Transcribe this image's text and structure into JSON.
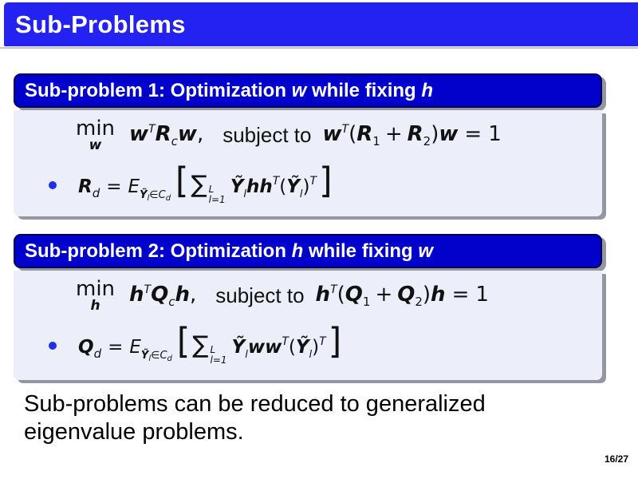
{
  "slide": {
    "header": {
      "title": "Sub-Problems"
    },
    "footer": {
      "line1": "Sub-problems can be reduced to generalized",
      "line2": "eigenvalue problems."
    },
    "page_number": "16/27",
    "colors": {
      "header_blue": "#2322F0",
      "box_title_blue": "#0101CB",
      "box_border_navy": "#020253",
      "box_body_bg": "#ECEFF9",
      "shadow_gray": "#9696A2",
      "bullet_blue": "#2030E8",
      "title_text": "#FFFFFF",
      "body_text": "#000000"
    }
  },
  "box1": {
    "title": {
      "t1": "Sub-problem 1: Optimization ",
      "v1": "w",
      "t2": " while fixing ",
      "v2": "h"
    },
    "formula": {
      "min": "min",
      "min_sub": "w",
      "x1": "w",
      "x1_sup": "T",
      "M1": "R",
      "M1_sub": "c",
      "x2": "w",
      "comma": ",",
      "subject": "subject to",
      "x3": "w",
      "x3_sup": "T",
      "lparen": "(",
      "M2": "R",
      "M2_sub": "1",
      "plus": "+",
      "M3": "R",
      "M3_sub": "2",
      "rparen": ")",
      "x4": "w",
      "equals": "=",
      "one": "1"
    },
    "bullet": {
      "lhs": "R",
      "lhs_sub": "d",
      "equals": "=",
      "E": "E",
      "cond_y": "Ỹ",
      "cond_l": "l",
      "cond_in": "∈",
      "cond_c": "C",
      "cond_d": "d",
      "lbracket": "[",
      "sum": "∑",
      "sum_top": "L",
      "sum_bot": "l=1",
      "y1": "Ỹ",
      "y1_sub": "l",
      "u1": "h",
      "u2": "h",
      "u2_sup": "T",
      "lparen": "(",
      "y2": "Ỹ",
      "y2_sub": "l",
      "rparen": ")",
      "rparen_sup": "T",
      "rbracket": "]"
    }
  },
  "box2": {
    "title": {
      "t1": "Sub-problem 2: Optimization ",
      "v1": "h",
      "t2": " while fixing ",
      "v2": "w"
    },
    "formula": {
      "min": "min",
      "min_sub": "h",
      "x1": "h",
      "x1_sup": "T",
      "M1": "Q",
      "M1_sub": "c",
      "x2": "h",
      "comma": ",",
      "subject": "subject to",
      "x3": "h",
      "x3_sup": "T",
      "lparen": "(",
      "M2": "Q",
      "M2_sub": "1",
      "plus": "+",
      "M3": "Q",
      "M3_sub": "2",
      "rparen": ")",
      "x4": "h",
      "equals": "=",
      "one": "1"
    },
    "bullet": {
      "lhs": "Q",
      "lhs_sub": "d",
      "equals": "=",
      "E": "E",
      "cond_y": "Ỹ",
      "cond_l": "l",
      "cond_in": "∈",
      "cond_c": "C",
      "cond_d": "d",
      "lbracket": "[",
      "sum": "∑",
      "sum_top": "L",
      "sum_bot": "l=1",
      "y1": "Ỹ",
      "y1_sub": "l",
      "u1": "w",
      "u2": "w",
      "u2_sup": "T",
      "lparen": "(",
      "y2": "Ỹ",
      "y2_sub": "l",
      "rparen": ")",
      "rparen_sup": "T",
      "rbracket": "]"
    }
  }
}
